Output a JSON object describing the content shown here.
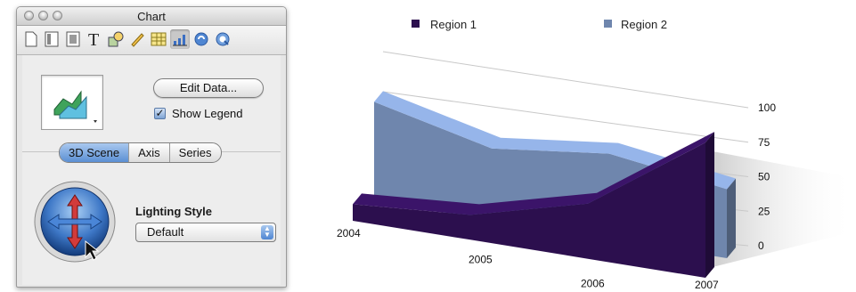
{
  "window": {
    "title": "Chart"
  },
  "toolbar": {
    "icons": [
      "document-icon",
      "layout-icon",
      "display-icon",
      "text-icon",
      "graphic-icon",
      "metrics-icon",
      "table-icon",
      "chart-icon",
      "link-icon",
      "quicktime-icon"
    ],
    "selected": "chart-icon"
  },
  "inspector": {
    "edit_data_label": "Edit Data...",
    "show_legend_label": "Show Legend",
    "show_legend_checked": true,
    "tabs": [
      {
        "label": "3D Scene",
        "active": true
      },
      {
        "label": "Axis",
        "active": false
      },
      {
        "label": "Series",
        "active": false
      }
    ],
    "lighting_style_label": "Lighting Style",
    "lighting_style_value": "Default"
  },
  "colors": {
    "region1": "#2c0f4e",
    "region2": "#6f86ad",
    "accent": "#5b8fd3"
  },
  "chart_data": {
    "type": "area",
    "x": [
      "2004",
      "2005",
      "2006",
      "2007"
    ],
    "series": [
      {
        "name": "Region 1",
        "values": [
          12,
          18,
          40,
          98
        ]
      },
      {
        "name": "Region 2",
        "values": [
          72,
          52,
          62,
          50
        ]
      }
    ],
    "yticks": [
      "100",
      "75",
      "50",
      "25",
      "0"
    ],
    "ylim": [
      0,
      100
    ],
    "legend": "top",
    "three_d": true
  }
}
